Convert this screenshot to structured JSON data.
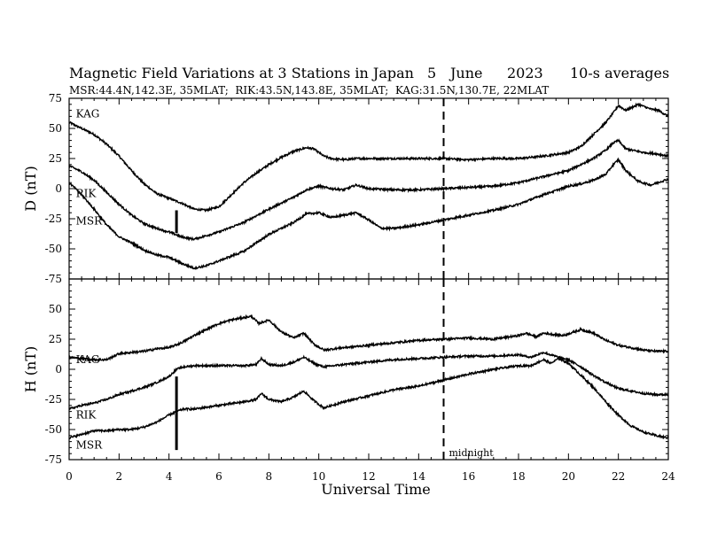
{
  "chart_data": {
    "type": "line",
    "title": "Magnetic Field Variations at 3 Stations in Japan",
    "date_day": "5",
    "date_month": "June",
    "date_year": "2023",
    "averaging": "10-s averages",
    "station_info": "MSR:44.4N,142.3E, 35MLAT;  RIK:43.5N,143.8E, 35MLAT;  KAG:31.5N,130.7E, 22MLAT",
    "xlabel": "Universal Time",
    "xlim": [
      0,
      24
    ],
    "x_ticks": [
      0,
      2,
      4,
      6,
      8,
      10,
      12,
      14,
      16,
      18,
      20,
      22,
      24
    ],
    "midnight_ut": 15,
    "midnight_label": "midnight",
    "panels": [
      {
        "ylabel": "D (nT)",
        "ylim": [
          -75,
          75
        ],
        "y_ticks": [
          75,
          50,
          25,
          0,
          -25,
          -50,
          -75
        ],
        "event_marker": {
          "x": 4.3,
          "y1": -18,
          "y2": -37
        },
        "series": [
          {
            "name": "KAG",
            "label_pos": [
              0.2,
              62
            ],
            "x": [
              0,
              0.5,
              1,
              1.5,
              2,
              2.5,
              3,
              3.5,
              4,
              4.5,
              5,
              5.5,
              6,
              6.5,
              7,
              7.5,
              8,
              8.5,
              9,
              9.5,
              9.8,
              10.2,
              10.5,
              11,
              11.5,
              12,
              13,
              14,
              15,
              16,
              17,
              18,
              19,
              20,
              20.5,
              21,
              21.5,
              21.8,
              22,
              22.3,
              22.8,
              23.3,
              23.6,
              24
            ],
            "values": [
              55,
              50,
              45,
              37,
              27,
              15,
              4,
              -4,
              -8,
              -12,
              -17,
              -18,
              -15,
              -5,
              5,
              13,
              20,
              26,
              31,
              34,
              33,
              27,
              25,
              24,
              25,
              25,
              25,
              25,
              25,
              24,
              25,
              25,
              27,
              30,
              35,
              45,
              55,
              63,
              69,
              65,
              70,
              66,
              65,
              60
            ]
          },
          {
            "name": "RIK",
            "label_pos": [
              0.2,
              -4
            ],
            "x": [
              0,
              0.5,
              1,
              1.5,
              2,
              2.5,
              3,
              3.5,
              4,
              4.5,
              5,
              5.5,
              6,
              7,
              8,
              9,
              9.5,
              10,
              10.5,
              11,
              11.5,
              12,
              13,
              14,
              15,
              16,
              17,
              18,
              19,
              20,
              20.5,
              21,
              21.5,
              21.8,
              22,
              22.3,
              23,
              23.5,
              24
            ],
            "values": [
              19,
              14,
              7,
              -3,
              -13,
              -22,
              -29,
              -33,
              -36,
              -40,
              -42,
              -39,
              -36,
              -28,
              -17,
              -7,
              -1,
              2,
              0,
              -1,
              3,
              0,
              -1,
              -1,
              0,
              1,
              2,
              5,
              10,
              15,
              20,
              25,
              32,
              38,
              40,
              33,
              30,
              29,
              27
            ]
          },
          {
            "name": "MSR",
            "label_pos": [
              0.2,
              -27
            ],
            "x": [
              0,
              0.5,
              1,
              1.5,
              2,
              2.5,
              3,
              3.5,
              4,
              4.5,
              5,
              5.5,
              6,
              7,
              8,
              9,
              9.5,
              10,
              10.5,
              11,
              11.5,
              12,
              12.5,
              13,
              14,
              15,
              16,
              17,
              18,
              19,
              20,
              20.5,
              21,
              21.5,
              21.8,
              22,
              22.3,
              22.8,
              23.3,
              24
            ],
            "values": [
              5,
              -5,
              -17,
              -30,
              -40,
              -45,
              -51,
              -55,
              -57,
              -62,
              -66,
              -64,
              -60,
              -52,
              -38,
              -28,
              -21,
              -20,
              -24,
              -22,
              -20,
              -26,
              -33,
              -33,
              -30,
              -26,
              -22,
              -18,
              -13,
              -5,
              2,
              4,
              7,
              12,
              20,
              24,
              15,
              6,
              3,
              8
            ]
          }
        ]
      },
      {
        "ylabel": "H (nT)",
        "ylim": [
          -75,
          75
        ],
        "y_ticks": [
          75,
          50,
          25,
          0,
          -25,
          -50,
          -75
        ],
        "event_marker": {
          "x": 4.3,
          "y1": -6,
          "y2": -67
        },
        "series": [
          {
            "name": "KAG",
            "label_pos": [
              0.2,
              8
            ],
            "x": [
              0,
              0.5,
              1,
              1.5,
              2,
              2.5,
              3,
              3.5,
              4,
              4.5,
              5,
              5.5,
              6,
              6.5,
              7,
              7.3,
              7.6,
              8,
              8.5,
              9,
              9.4,
              9.8,
              10.2,
              11,
              12,
              13,
              14,
              15,
              16,
              17,
              18,
              18.3,
              18.7,
              19,
              19.4,
              19.8,
              20.5,
              21,
              21.5,
              22,
              22.5,
              23,
              23.5,
              24
            ],
            "values": [
              10,
              9,
              8,
              8,
              13,
              14,
              15,
              17,
              18,
              22,
              28,
              33,
              38,
              41,
              43,
              44,
              38,
              41,
              31,
              26,
              30,
              21,
              16,
              18,
              20,
              22,
              24,
              25,
              26,
              25,
              28,
              30,
              27,
              30,
              29,
              28,
              33,
              30,
              24,
              20,
              18,
              16,
              15,
              15
            ]
          },
          {
            "name": "RIK",
            "label_pos": [
              0.2,
              -38
            ],
            "x": [
              0,
              0.5,
              1,
              1.5,
              2,
              2.5,
              3,
              3.5,
              4,
              4.3,
              4.6,
              5,
              6,
              7,
              7.5,
              7.7,
              8,
              8.5,
              9,
              9.4,
              9.8,
              10.2,
              11,
              12,
              13,
              14,
              15,
              16,
              17,
              18,
              18.5,
              19,
              19.3,
              19.6,
              20,
              20.5,
              21,
              21.5,
              22,
              22.5,
              23,
              23.5,
              24
            ],
            "values": [
              -33,
              -30,
              -28,
              -25,
              -21,
              -18,
              -15,
              -11,
              -6,
              0,
              2,
              3,
              3,
              3,
              4,
              9,
              4,
              3,
              6,
              10,
              5,
              2,
              4,
              6,
              8,
              9,
              10,
              11,
              11,
              12,
              10,
              14,
              12,
              10,
              8,
              2,
              -5,
              -11,
              -16,
              -18,
              -20,
              -21,
              -21
            ]
          },
          {
            "name": "MSR",
            "label_pos": [
              0.2,
              -63
            ],
            "x": [
              0,
              0.5,
              1,
              1.5,
              2,
              2.5,
              3,
              3.5,
              4,
              4.3,
              4.6,
              5,
              6,
              7,
              7.5,
              7.7,
              8,
              8.5,
              9,
              9.4,
              9.8,
              10.2,
              11,
              12,
              13,
              14,
              15,
              16,
              17,
              18,
              18.5,
              19,
              19.3,
              19.6,
              20,
              20.5,
              21,
              21.5,
              22,
              22.5,
              23,
              23.5,
              24
            ],
            "values": [
              -57,
              -54,
              -51,
              -51,
              -50,
              -50,
              -48,
              -44,
              -38,
              -35,
              -33,
              -33,
              -30,
              -27,
              -25,
              -20,
              -25,
              -27,
              -23,
              -18,
              -26,
              -32,
              -27,
              -22,
              -17,
              -14,
              -9,
              -4,
              0,
              3,
              3,
              8,
              5,
              9,
              5,
              -5,
              -15,
              -27,
              -38,
              -47,
              -52,
              -55,
              -57
            ]
          }
        ]
      }
    ]
  }
}
